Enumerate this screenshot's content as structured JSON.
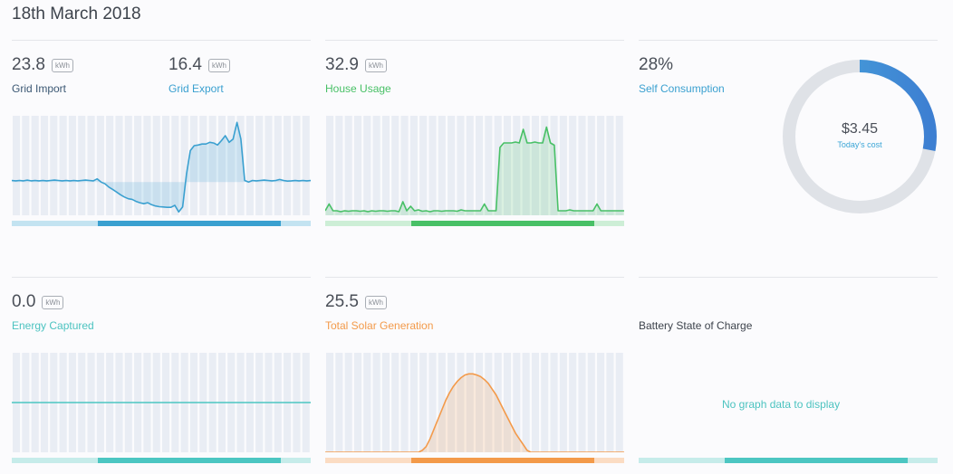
{
  "page": {
    "date_title": "18th March 2018"
  },
  "colors": {
    "grid": "#3aa0d0",
    "house": "#48c066",
    "captured": "#4cc6c2",
    "solar": "#f39a4a",
    "battery": "#4cc6c2",
    "donut_track": "#dfe2e7",
    "donut_fill": "#3f8fd6"
  },
  "grid_import": {
    "value": "23.8",
    "unit": "kWh",
    "label": "Grid Import"
  },
  "grid_export": {
    "value": "16.4",
    "unit": "kWh",
    "label": "Grid Export"
  },
  "house_usage": {
    "value": "32.9",
    "unit": "kWh",
    "label": "House Usage"
  },
  "self_consumption": {
    "value": "28%",
    "label": "Self Consumption",
    "cost": "$3.45",
    "cost_label": "Today's cost",
    "fraction": 0.28
  },
  "energy_captured": {
    "value": "0.0",
    "unit": "kWh",
    "label": "Energy Captured"
  },
  "solar_generation": {
    "value": "25.5",
    "unit": "kWh",
    "label": "Total Solar Generation"
  },
  "battery": {
    "label": "Battery State of Charge",
    "empty_message": "No graph data to display"
  },
  "chart_data": [
    {
      "type": "area",
      "name": "grid",
      "y": [
        0.05,
        0.04,
        0.05,
        0.04,
        0.06,
        0.04,
        0.05,
        0.04,
        0.05,
        0.04,
        0.05,
        0.06,
        0.05,
        0.04,
        0.05,
        0.04,
        0.05,
        0.04,
        0.05,
        0.06,
        0.05,
        0.04,
        0.1,
        0.0,
        -0.05,
        -0.15,
        -0.22,
        -0.3,
        -0.38,
        -0.45,
        -0.5,
        -0.52,
        -0.58,
        -0.62,
        -0.65,
        -0.62,
        -0.68,
        -0.72,
        -0.74,
        -0.75,
        -0.76,
        -0.76,
        -0.7,
        -0.9,
        -0.75,
        0.25,
        0.95,
        1.1,
        1.12,
        1.15,
        1.15,
        1.2,
        1.18,
        1.12,
        1.25,
        1.4,
        1.2,
        1.3,
        1.8,
        1.3,
        0.05,
        0.0,
        0.05,
        0.04,
        0.05,
        0.06,
        0.05,
        0.04,
        0.05,
        0.08,
        0.05,
        0.03,
        0.04,
        0.05,
        0.04,
        0.05,
        0.04,
        0.05
      ],
      "ylim": [
        -1,
        2
      ]
    },
    {
      "type": "area",
      "name": "house",
      "y": [
        0.1,
        0.25,
        0.1,
        0.1,
        0.08,
        0.1,
        0.09,
        0.1,
        0.1,
        0.09,
        0.1,
        0.08,
        0.1,
        0.09,
        0.1,
        0.1,
        0.09,
        0.1,
        0.1,
        0.08,
        0.3,
        0.1,
        0.2,
        0.1,
        0.12,
        0.09,
        0.1,
        0.08,
        0.1,
        0.1,
        0.09,
        0.1,
        0.1,
        0.1,
        0.09,
        0.12,
        0.1,
        0.1,
        0.1,
        0.1,
        0.1,
        0.25,
        0.1,
        0.1,
        0.1,
        1.5,
        1.6,
        1.6,
        1.6,
        1.62,
        1.6,
        1.9,
        1.6,
        1.6,
        1.62,
        1.6,
        1.6,
        1.95,
        1.6,
        1.55,
        0.1,
        0.1,
        0.1,
        0.12,
        0.1,
        0.1,
        0.1,
        0.1,
        0.1,
        0.1,
        0.25,
        0.1,
        0.1,
        0.1,
        0.1,
        0.1,
        0.1,
        0.1
      ],
      "ylim": [
        0,
        2.2
      ]
    },
    {
      "type": "line",
      "name": "captured",
      "y": [
        0,
        0
      ],
      "ylim": [
        -1,
        1
      ]
    },
    {
      "type": "area",
      "name": "solar",
      "y": [
        0,
        0,
        0,
        0,
        0,
        0,
        0,
        0,
        0,
        0,
        0,
        0,
        0,
        0,
        0,
        0,
        0,
        0,
        0,
        0,
        0,
        0,
        0,
        0,
        0,
        0.05,
        0.15,
        0.35,
        0.6,
        0.85,
        1.1,
        1.35,
        1.55,
        1.72,
        1.85,
        1.95,
        2.02,
        2.05,
        2.05,
        2.02,
        1.98,
        1.9,
        1.8,
        1.65,
        1.5,
        1.3,
        1.1,
        0.9,
        0.7,
        0.5,
        0.35,
        0.2,
        0.05,
        0,
        0,
        0,
        0,
        0,
        0,
        0,
        0,
        0,
        0,
        0,
        0,
        0,
        0,
        0,
        0,
        0,
        0,
        0,
        0,
        0,
        0,
        0,
        0,
        0
      ],
      "ylim": [
        0,
        2.6
      ]
    }
  ]
}
